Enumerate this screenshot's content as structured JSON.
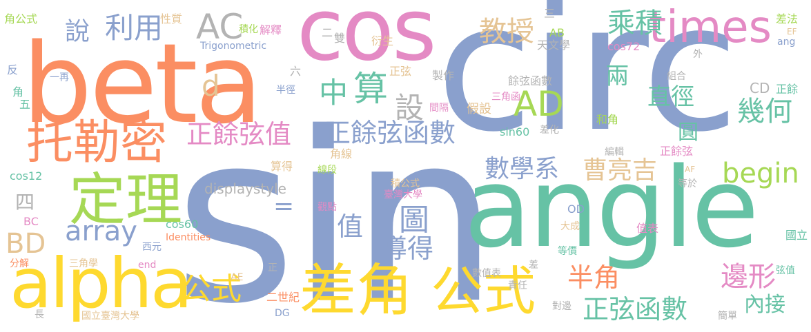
{
  "palette": {
    "blue": "#8aa0cd",
    "pink": "#e48ac4",
    "orange": "#fb8e62",
    "green": "#a6d855",
    "yellow": "#fed92f",
    "sand": "#e5c494",
    "teal": "#66c2a5",
    "grey": "#b3b3b3"
  },
  "words": {
    "sin": "sin",
    "circ": "circ",
    "beta": "beta",
    "cos": "cos",
    "angle": "angle",
    "alpha": "alpha",
    "dingli": "定理",
    "times": "times",
    "chajiao": "差角",
    "gongshi_big": "公式",
    "tuolemi": "托勒密",
    "AD": "AD",
    "AC": "AC",
    "liyong": "利用",
    "shuo": "說",
    "jiaoshou": "教授",
    "chengji": "乘積",
    "zhong": "中",
    "suan": "算",
    "she": "設",
    "d": "d",
    "liang": "兩",
    "zhijing": "直徑",
    "jihe": "幾何",
    "yuan": "圓",
    "zhengyuxianzhi": "正餘弦值",
    "zhengyuxianhanshu": "正餘弦函數",
    "shuxuexi": "數學系",
    "caoliangji": "曹亮吉",
    "begin": "begin",
    "array": "array",
    "tu": "圖",
    "zhi": "值",
    "BD": "BD",
    "gongshi_mid": "公式",
    "daode": "導得",
    "banjiao": "半角",
    "bianxing": "邊形",
    "zhengxianhanshu": "正弦函數",
    "neijie": "內接",
    "si": "四",
    "displaystyle": "displaystyle",
    "eq": "=",
    "AB": "AB",
    "san": "三",
    "tianwenxue": "天文學",
    "cos72": "cos72",
    "yanhsheng": "衍生",
    "jiaogongshi": "角公式",
    "xingzhi": "性質",
    "jihua": "積化",
    "jieshi": "解釋",
    "er": "二",
    "shuang": "雙",
    "Trigonometric": "Trigonometric",
    "chafa": "差法",
    "EF": "EF",
    "ang": "ang",
    "wai": "外",
    "fan": "反",
    "yizai": "一再",
    "liu": "六",
    "jiao": "角",
    "wu": "五",
    "banjing": "半徑",
    "zhengxian": "正弦",
    "zhizuo": "製作",
    "yuxianhanshu": "餘弦函數",
    "zuhe": "組合",
    "CD": "CD",
    "zhengyu": "正餘",
    "sanjiaohan": "三角函",
    "jiashe": "假設",
    "jiange": "間隔",
    "hejiao": "和角",
    "sin60": "sin60",
    "chahua": "差化",
    "bianji": "編輯",
    "zhengyuxian": "正餘弦",
    "jiaoxian": "角線",
    "xianduan": "線段",
    "suande": "算得",
    "AF": "AF",
    "dengyu": "等於",
    "cos12": "cos12",
    "jigongshi": "積公式",
    "taiwandaxue": "臺灣大學",
    "guandian": "觀點",
    "OD": "OD",
    "BC": "BC",
    "cos60": "cos60",
    "dacheng": "大成",
    "zhibiao": "值表",
    "Identities": "Identities",
    "xiyuan": "西元",
    "guoli": "國立",
    "dengjia": "等價",
    "fenjie": "分解",
    "sanjiaoxue": "三角學",
    "end": "end",
    "zheng": "正",
    "cha": "差",
    "shuzhibiao": "數值表",
    "xianzhi": "弦值",
    "AE": "AE",
    "zeren": "責任",
    "ershishiji": "二世紀",
    "duibian": "對邊",
    "DG": "DG",
    "chang": "長",
    "guolitaiwandaxue": "國立臺灣大學",
    "jiandan": "簡單"
  }
}
